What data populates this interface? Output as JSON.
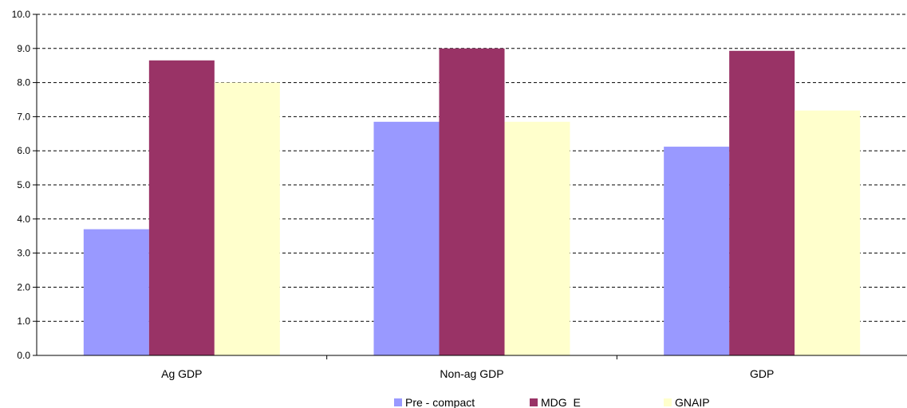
{
  "chart_data": {
    "type": "bar",
    "categories": [
      "Ag GDP",
      "Non-ag GDP",
      "GDP"
    ],
    "series": [
      {
        "name": "Pre - compact",
        "color": "#9999FF",
        "values": [
          3.7,
          6.85,
          6.12
        ]
      },
      {
        "name": "MDG  E",
        "color": "#993366",
        "values": [
          8.65,
          9.0,
          8.93
        ]
      },
      {
        "name": "GNAIP",
        "color": "#FFFFCC",
        "values": [
          8.0,
          6.85,
          7.18
        ]
      }
    ],
    "ylim": [
      0,
      10
    ],
    "yticks": [
      "0.0",
      "1.0",
      "2.0",
      "3.0",
      "4.0",
      "5.0",
      "6.0",
      "7.0",
      "8.0",
      "9.0",
      "10.0"
    ],
    "grid": true,
    "legend_position": "bottom"
  }
}
